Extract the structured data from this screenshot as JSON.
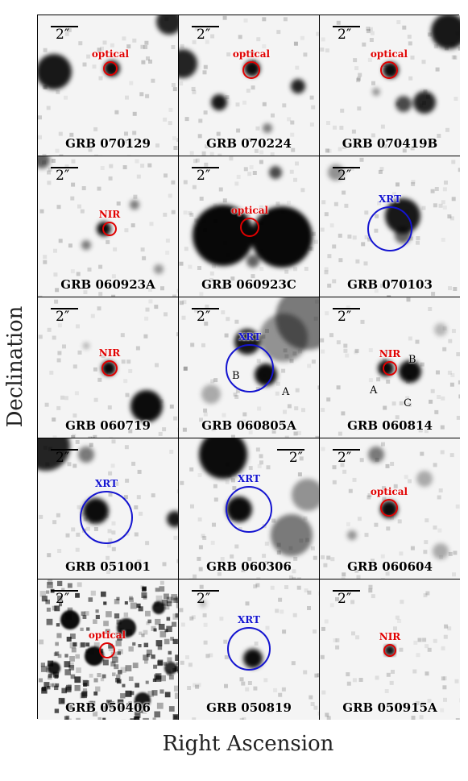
{
  "axes": {
    "xlabel": "Right Ascension",
    "ylabel": "Declination"
  },
  "scale_label": "2″",
  "colors": {
    "optical": "#e00000",
    "nir": "#e00000",
    "xrt": "#1414d0"
  },
  "panels": [
    {
      "name": "GRB 070129",
      "marker": "optical",
      "marker_label": "optical",
      "components": []
    },
    {
      "name": "GRB 070224",
      "marker": "optical",
      "marker_label": "optical",
      "components": []
    },
    {
      "name": "GRB 070419B",
      "marker": "optical",
      "marker_label": "optical",
      "components": []
    },
    {
      "name": "GRB 060923A",
      "marker": "nir",
      "marker_label": "NIR",
      "components": []
    },
    {
      "name": "GRB 060923C",
      "marker": "optical",
      "marker_label": "optical",
      "components": []
    },
    {
      "name": "GRB 070103",
      "marker": "xrt",
      "marker_label": "XRT",
      "components": []
    },
    {
      "name": "GRB 060719",
      "marker": "nir",
      "marker_label": "NIR",
      "components": []
    },
    {
      "name": "GRB 060805A",
      "marker": "xrt",
      "marker_label": "XRT",
      "components": [
        "B",
        "A"
      ]
    },
    {
      "name": "GRB 060814",
      "marker": "nir",
      "marker_label": "NIR",
      "components": [
        "B",
        "A",
        "C"
      ]
    },
    {
      "name": "GRB 051001",
      "marker": "xrt",
      "marker_label": "XRT",
      "components": []
    },
    {
      "name": "GRB 060306",
      "marker": "xrt",
      "marker_label": "XRT",
      "components": []
    },
    {
      "name": "GRB 060604",
      "marker": "optical",
      "marker_label": "optical",
      "components": []
    },
    {
      "name": "GRB 050406",
      "marker": "optical",
      "marker_label": "optical",
      "components": []
    },
    {
      "name": "GRB 050819",
      "marker": "xrt",
      "marker_label": "XRT",
      "components": []
    },
    {
      "name": "GRB 050915A",
      "marker": "nir",
      "marker_label": "NIR",
      "components": []
    }
  ]
}
